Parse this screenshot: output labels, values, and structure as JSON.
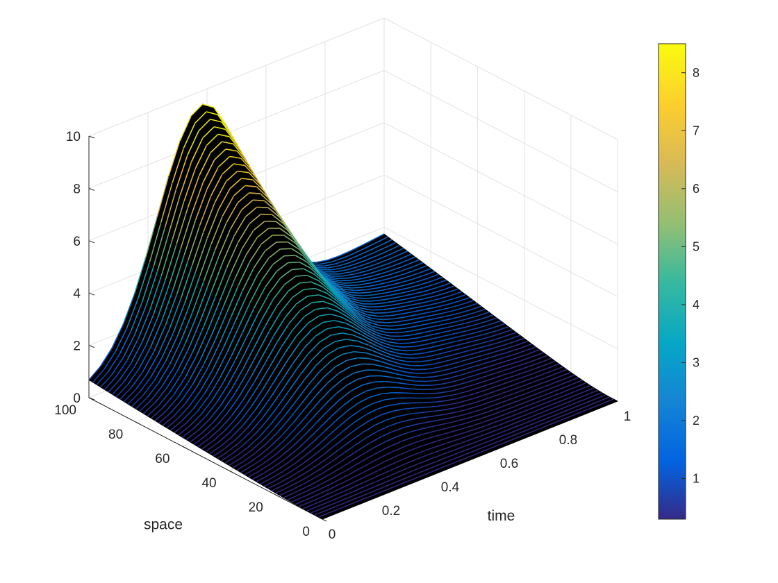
{
  "chart_data": {
    "type": "surface",
    "title": "",
    "xlabel": "time",
    "ylabel": "space",
    "zlabel": "",
    "xlim": [
      0,
      1
    ],
    "ylim": [
      0,
      100
    ],
    "zlim": [
      0,
      10
    ],
    "x_ticks": [
      "0",
      "0.2",
      "0.4",
      "0.6",
      "0.8",
      "1"
    ],
    "y_ticks": [
      "0",
      "20",
      "40",
      "60",
      "80",
      "100"
    ],
    "z_ticks": [
      "0",
      "2",
      "4",
      "6",
      "8",
      "10"
    ],
    "grid": true,
    "edge_color": "black",
    "colormap": "parula",
    "colorbar": {
      "placement": "right",
      "range": [
        0.3,
        8.5
      ],
      "ticks": [
        "1",
        "2",
        "3",
        "4",
        "5",
        "6",
        "7",
        "8"
      ]
    },
    "surface_peak": {
      "time": 0.4,
      "space": 100,
      "value": 8.5
    },
    "surface_samples": [
      {
        "time": 0.0,
        "space": 100,
        "value": 1.8
      },
      {
        "time": 0.2,
        "space": 100,
        "value": 7.6
      },
      {
        "time": 0.4,
        "space": 100,
        "value": 8.5
      },
      {
        "time": 0.6,
        "space": 100,
        "value": 6.2
      },
      {
        "time": 0.8,
        "space": 100,
        "value": 2.8
      },
      {
        "time": 1.0,
        "space": 100,
        "value": 1.4
      },
      {
        "time": 0.4,
        "space": 50,
        "value": 4.5
      },
      {
        "time": 0.6,
        "space": 20,
        "value": 1.8
      },
      {
        "time": 1.0,
        "space": 20,
        "value": 0.6
      },
      {
        "time": 0.0,
        "space": 0,
        "value": 0.0
      },
      {
        "time": 1.0,
        "space": 0,
        "value": 0.0
      }
    ]
  }
}
